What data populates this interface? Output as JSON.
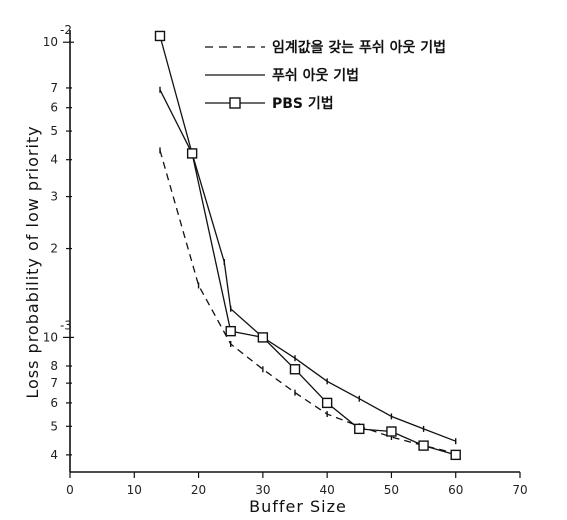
{
  "chart_data": {
    "type": "line",
    "title": "",
    "xlabel": "Buffer Size",
    "ylabel": "Loss probability of low priority",
    "xlim": [
      0,
      70
    ],
    "ylim": [
      0.00035,
      0.011
    ],
    "y_scale": "log",
    "grid": false,
    "legend_position": "top-right",
    "x_ticks": [
      "0",
      "10",
      "20",
      "30",
      "40",
      "50",
      "60",
      "70"
    ],
    "y_ticks": [
      {
        "value": 0.01,
        "mantissa": "10",
        "exponent": "-2"
      },
      {
        "value": 0.001,
        "mantissa": "10",
        "exponent": "-3"
      }
    ],
    "y_minor_labels": [
      {
        "value": 0.007,
        "label": "7"
      },
      {
        "value": 0.006,
        "label": "6"
      },
      {
        "value": 0.005,
        "label": "5"
      },
      {
        "value": 0.004,
        "label": "4"
      },
      {
        "value": 0.003,
        "label": "3"
      },
      {
        "value": 0.002,
        "label": "2"
      },
      {
        "value": 0.0008,
        "label": "8"
      },
      {
        "value": 0.0007,
        "label": "7"
      },
      {
        "value": 0.0006,
        "label": "6"
      },
      {
        "value": 0.0005,
        "label": "5"
      },
      {
        "value": 0.0004,
        "label": "4"
      }
    ],
    "series": [
      {
        "name": "임계값을 갖는 푸쉬 아웃 기법",
        "style": "dashed",
        "marker": "tick",
        "x": [
          14,
          20,
          25,
          30,
          35,
          40,
          45,
          50,
          55,
          60
        ],
        "y": [
          0.0043,
          0.0015,
          0.00095,
          0.00078,
          0.00065,
          0.00055,
          0.0005,
          0.00046,
          0.00043,
          0.000405
        ]
      },
      {
        "name": "푸쉬 아웃 기법",
        "style": "solid",
        "marker": "tick",
        "x": [
          14,
          19,
          24,
          25,
          30,
          35,
          40,
          45,
          50,
          55,
          60
        ],
        "y": [
          0.0069,
          0.0042,
          0.0018,
          0.00125,
          0.001,
          0.00085,
          0.00071,
          0.00062,
          0.00054,
          0.00049,
          0.000445
        ]
      },
      {
        "name": "PBS 기법",
        "style": "solid",
        "marker": "square",
        "x": [
          14,
          19,
          25,
          30,
          35,
          40,
          45,
          50,
          55,
          60
        ],
        "y": [
          0.0105,
          0.0042,
          0.00105,
          0.001,
          0.00078,
          0.0006,
          0.00049,
          0.00048,
          0.00043,
          0.0004
        ]
      }
    ]
  }
}
